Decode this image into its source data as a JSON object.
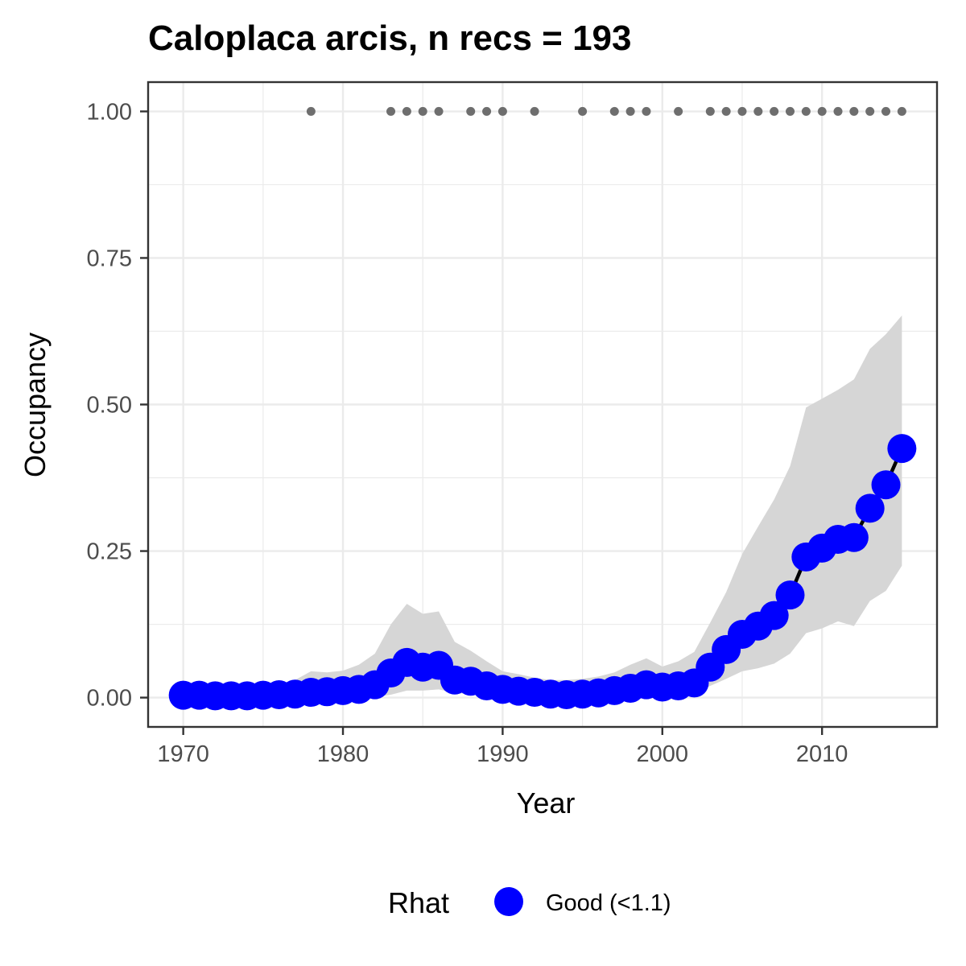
{
  "chart_data": {
    "type": "line",
    "title": "Caloplaca arcis, n recs = 193",
    "xlabel": "Year",
    "ylabel": "Occupancy",
    "xlim": [
      1967.8,
      2017.2
    ],
    "ylim": [
      -0.05,
      1.05
    ],
    "x_ticks": [
      1970,
      1980,
      1990,
      2000,
      2010
    ],
    "x_tick_labels": [
      "1970",
      "1980",
      "1990",
      "2000",
      "2010"
    ],
    "y_ticks": [
      0,
      0.25,
      0.5,
      0.75,
      1
    ],
    "y_tick_labels": [
      "0.00",
      "0.25",
      "0.50",
      "0.75",
      "1.00"
    ],
    "grid": true,
    "legend": {
      "title": "Rhat",
      "position": "bottom",
      "entries": [
        {
          "label": "Good (<1.1)",
          "color": "#0000ff"
        }
      ]
    },
    "series": [
      {
        "name": "Good (<1.1)",
        "color": "#0000ff",
        "x": [
          1970,
          1971,
          1972,
          1973,
          1974,
          1975,
          1976,
          1977,
          1978,
          1979,
          1980,
          1981,
          1982,
          1983,
          1984,
          1985,
          1986,
          1987,
          1988,
          1989,
          1990,
          1991,
          1992,
          1993,
          1994,
          1995,
          1996,
          1997,
          1998,
          1999,
          2000,
          2001,
          2002,
          2003,
          2004,
          2005,
          2006,
          2007,
          2008,
          2009,
          2010,
          2011,
          2012,
          2013,
          2014,
          2015
        ],
        "y": [
          0.004,
          0.004,
          0.003,
          0.003,
          0.003,
          0.004,
          0.005,
          0.006,
          0.009,
          0.01,
          0.012,
          0.014,
          0.022,
          0.042,
          0.06,
          0.052,
          0.055,
          0.03,
          0.028,
          0.02,
          0.014,
          0.011,
          0.009,
          0.006,
          0.005,
          0.006,
          0.008,
          0.012,
          0.016,
          0.022,
          0.018,
          0.02,
          0.025,
          0.052,
          0.082,
          0.108,
          0.122,
          0.14,
          0.175,
          0.24,
          0.255,
          0.27,
          0.273,
          0.323,
          0.363,
          0.425
        ],
        "lower": [
          0.0,
          0.0,
          0.0,
          0.0,
          0.0,
          0.0,
          0.0,
          0.0,
          0.0,
          0.0,
          0.0,
          0.0,
          0.001,
          0.005,
          0.012,
          0.012,
          0.014,
          0.008,
          0.006,
          0.003,
          0.002,
          0.001,
          0.001,
          0.0,
          0.0,
          0.0,
          0.0,
          0.001,
          0.002,
          0.004,
          0.003,
          0.004,
          0.006,
          0.02,
          0.032,
          0.045,
          0.05,
          0.058,
          0.075,
          0.11,
          0.118,
          0.13,
          0.122,
          0.165,
          0.182,
          0.225
        ],
        "upper": [
          0.015,
          0.016,
          0.016,
          0.017,
          0.017,
          0.02,
          0.023,
          0.03,
          0.045,
          0.043,
          0.046,
          0.056,
          0.075,
          0.125,
          0.16,
          0.143,
          0.147,
          0.095,
          0.08,
          0.062,
          0.045,
          0.04,
          0.034,
          0.03,
          0.03,
          0.032,
          0.036,
          0.043,
          0.056,
          0.067,
          0.053,
          0.062,
          0.078,
          0.128,
          0.18,
          0.245,
          0.292,
          0.338,
          0.395,
          0.495,
          0.51,
          0.525,
          0.543,
          0.595,
          0.62,
          0.652
        ]
      }
    ],
    "records": {
      "color": "#6e6e6e",
      "y": 1,
      "x": [
        1978,
        1983,
        1984,
        1985,
        1986,
        1988,
        1989,
        1990,
        1992,
        1995,
        1997,
        1998,
        1999,
        2001,
        2003,
        2004,
        2005,
        2006,
        2007,
        2008,
        2009,
        2010,
        2011,
        2012,
        2013,
        2014,
        2015
      ]
    },
    "ci_color": "#d6d6d6"
  }
}
